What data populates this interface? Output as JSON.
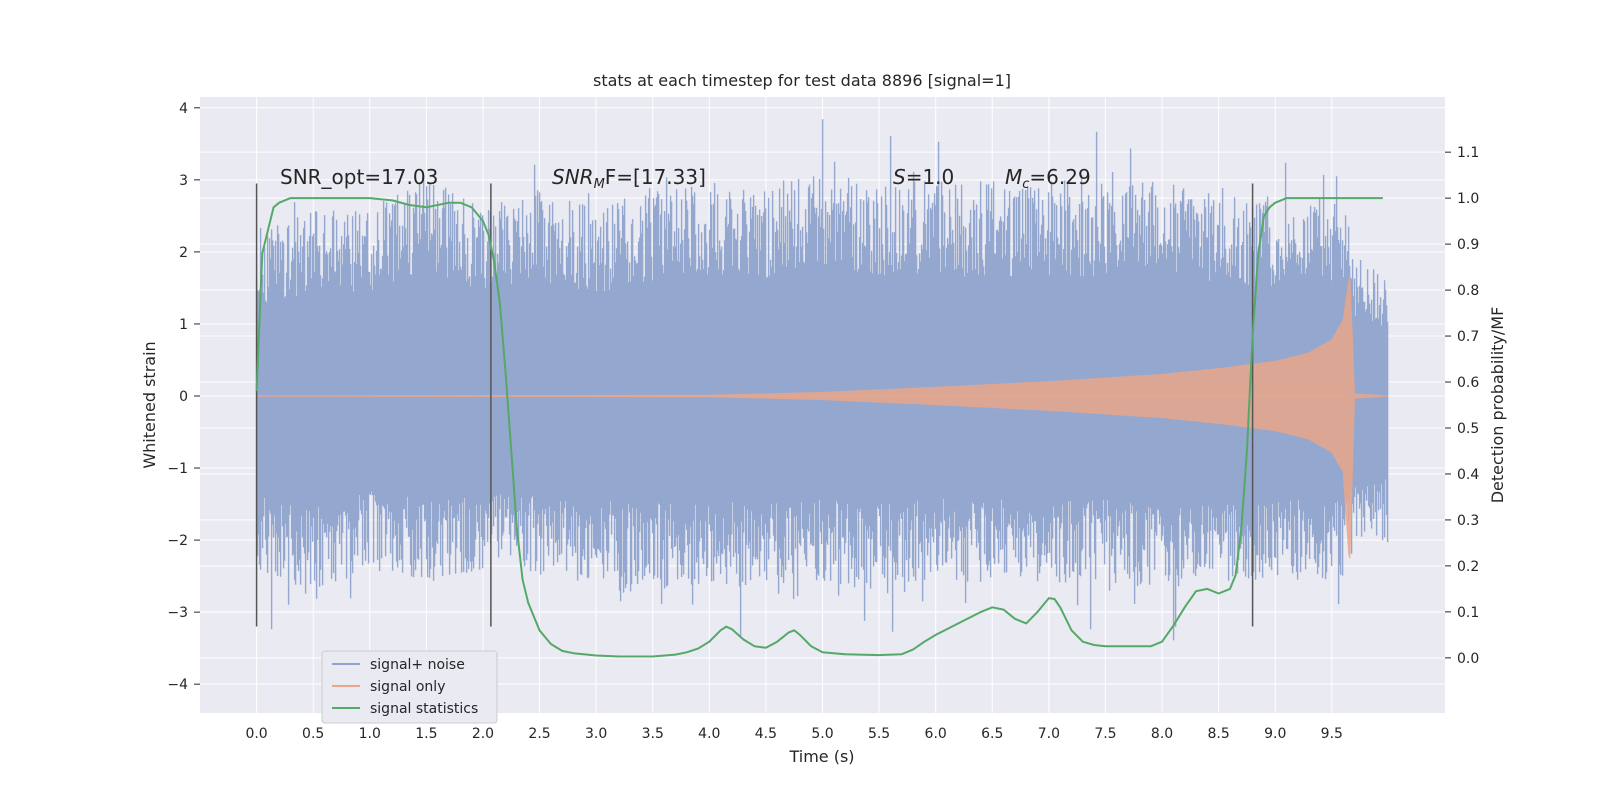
{
  "chart_data": {
    "type": "line",
    "title": "stats at each timestep for test data 8896 [signal=1]",
    "xlabel": "Time (s)",
    "ylabel": "Whitened strain",
    "y2label": "Detection probability/MF",
    "xlim": [
      -0.5,
      10.5
    ],
    "ylim": [
      -4.4,
      4.15
    ],
    "y2lim": [
      -0.12,
      1.22
    ],
    "xticks": [
      "0.0",
      "0.5",
      "1.0",
      "1.5",
      "2.0",
      "2.5",
      "3.0",
      "3.5",
      "4.0",
      "4.5",
      "5.0",
      "5.5",
      "6.0",
      "6.5",
      "7.0",
      "7.5",
      "8.0",
      "8.5",
      "9.0",
      "9.5"
    ],
    "yticks": [
      "−4",
      "−3",
      "−2",
      "−1",
      "0",
      "1",
      "2",
      "3",
      "4"
    ],
    "y2ticks": [
      "0.0",
      "0.1",
      "0.2",
      "0.3",
      "0.4",
      "0.5",
      "0.6",
      "0.7",
      "0.8",
      "0.9",
      "1.0",
      "1.1"
    ],
    "grid": true,
    "legend_position": "lower-left",
    "annotations": {
      "snr_opt": "SNR_opt=17.03",
      "snr_mf_name": "SNR",
      "snr_mf_sub": "M",
      "snr_mf_rest": "F=[17.33]",
      "s_name": "S",
      "s_value": "=1.0",
      "mc_name": "M",
      "mc_sub": "c",
      "mc_value": "=6.29"
    },
    "vertical_markers_x": [
      0.0,
      2.07,
      8.8
    ],
    "series": [
      {
        "name": "signal+ noise",
        "color": "#8fa3cc",
        "envelope_x": [
          0.0,
          0.5,
          1.0,
          1.5,
          2.0,
          2.5,
          3.0,
          3.5,
          4.0,
          4.5,
          5.0,
          5.5,
          6.0,
          6.5,
          7.0,
          7.5,
          8.0,
          8.5,
          9.0,
          9.5,
          9.6,
          9.7,
          10.0
        ],
        "envelope_upper": [
          2.3,
          2.6,
          2.6,
          3.1,
          2.6,
          2.9,
          2.6,
          2.9,
          3.0,
          2.9,
          3.2,
          3.0,
          3.0,
          3.0,
          3.0,
          3.0,
          3.0,
          2.8,
          2.7,
          2.8,
          2.7,
          2.0,
          1.6
        ],
        "envelope_lower": [
          -2.4,
          -2.8,
          -2.4,
          -2.6,
          -2.4,
          -2.5,
          -2.6,
          -2.7,
          -2.7,
          -2.6,
          -2.6,
          -2.7,
          -2.6,
          -2.6,
          -2.6,
          -2.6,
          -2.7,
          -2.7,
          -2.6,
          -2.6,
          -2.6,
          -2.1,
          -2.1
        ]
      },
      {
        "name": "signal only",
        "color": "#e8a68a",
        "envelope_x": [
          0.0,
          4.0,
          5.0,
          6.0,
          7.0,
          8.0,
          8.5,
          9.0,
          9.3,
          9.5,
          9.6,
          9.65,
          9.66,
          9.7,
          10.0
        ],
        "envelope_upper": [
          0.0,
          0.01,
          0.05,
          0.12,
          0.2,
          0.3,
          0.38,
          0.48,
          0.6,
          0.78,
          1.05,
          1.6,
          1.65,
          0.03,
          0.0
        ],
        "envelope_lower": [
          0.0,
          -0.01,
          -0.05,
          -0.12,
          -0.2,
          -0.3,
          -0.38,
          -0.48,
          -0.6,
          -0.78,
          -1.05,
          -2.2,
          -2.25,
          -0.03,
          0.0
        ]
      },
      {
        "name": "signal statistics",
        "color": "#55a868",
        "x": [
          0.0,
          0.05,
          0.1,
          0.15,
          0.2,
          0.3,
          0.5,
          0.8,
          1.0,
          1.2,
          1.35,
          1.5,
          1.6,
          1.7,
          1.8,
          1.9,
          2.0,
          2.05,
          2.1,
          2.15,
          2.2,
          2.25,
          2.3,
          2.35,
          2.4,
          2.5,
          2.6,
          2.7,
          2.8,
          3.0,
          3.2,
          3.5,
          3.7,
          3.8,
          3.9,
          4.0,
          4.1,
          4.15,
          4.2,
          4.3,
          4.4,
          4.5,
          4.6,
          4.7,
          4.75,
          4.8,
          4.9,
          5.0,
          5.2,
          5.5,
          5.7,
          5.8,
          5.9,
          6.0,
          6.2,
          6.4,
          6.5,
          6.6,
          6.7,
          6.8,
          6.9,
          7.0,
          7.05,
          7.1,
          7.2,
          7.3,
          7.4,
          7.5,
          7.7,
          7.9,
          8.0,
          8.1,
          8.2,
          8.3,
          8.4,
          8.5,
          8.6,
          8.65,
          8.7,
          8.75,
          8.8,
          8.85,
          8.9,
          8.95,
          9.0,
          9.05,
          9.1,
          9.2,
          9.5,
          9.8,
          9.95
        ],
        "y": [
          0.58,
          0.88,
          0.93,
          0.98,
          0.99,
          1.0,
          1.0,
          1.0,
          1.0,
          0.995,
          0.985,
          0.98,
          0.985,
          0.99,
          0.99,
          0.98,
          0.95,
          0.92,
          0.86,
          0.77,
          0.62,
          0.45,
          0.28,
          0.17,
          0.12,
          0.06,
          0.03,
          0.015,
          0.01,
          0.005,
          0.003,
          0.003,
          0.007,
          0.012,
          0.02,
          0.035,
          0.06,
          0.068,
          0.062,
          0.04,
          0.025,
          0.022,
          0.035,
          0.055,
          0.06,
          0.05,
          0.025,
          0.012,
          0.008,
          0.006,
          0.008,
          0.018,
          0.035,
          0.05,
          0.075,
          0.1,
          0.11,
          0.105,
          0.085,
          0.075,
          0.1,
          0.13,
          0.128,
          0.11,
          0.06,
          0.035,
          0.028,
          0.025,
          0.025,
          0.025,
          0.035,
          0.07,
          0.11,
          0.145,
          0.15,
          0.14,
          0.15,
          0.18,
          0.28,
          0.45,
          0.7,
          0.88,
          0.96,
          0.98,
          0.99,
          0.995,
          1.0,
          1.0,
          1.0,
          1.0,
          1.0
        ]
      }
    ]
  }
}
